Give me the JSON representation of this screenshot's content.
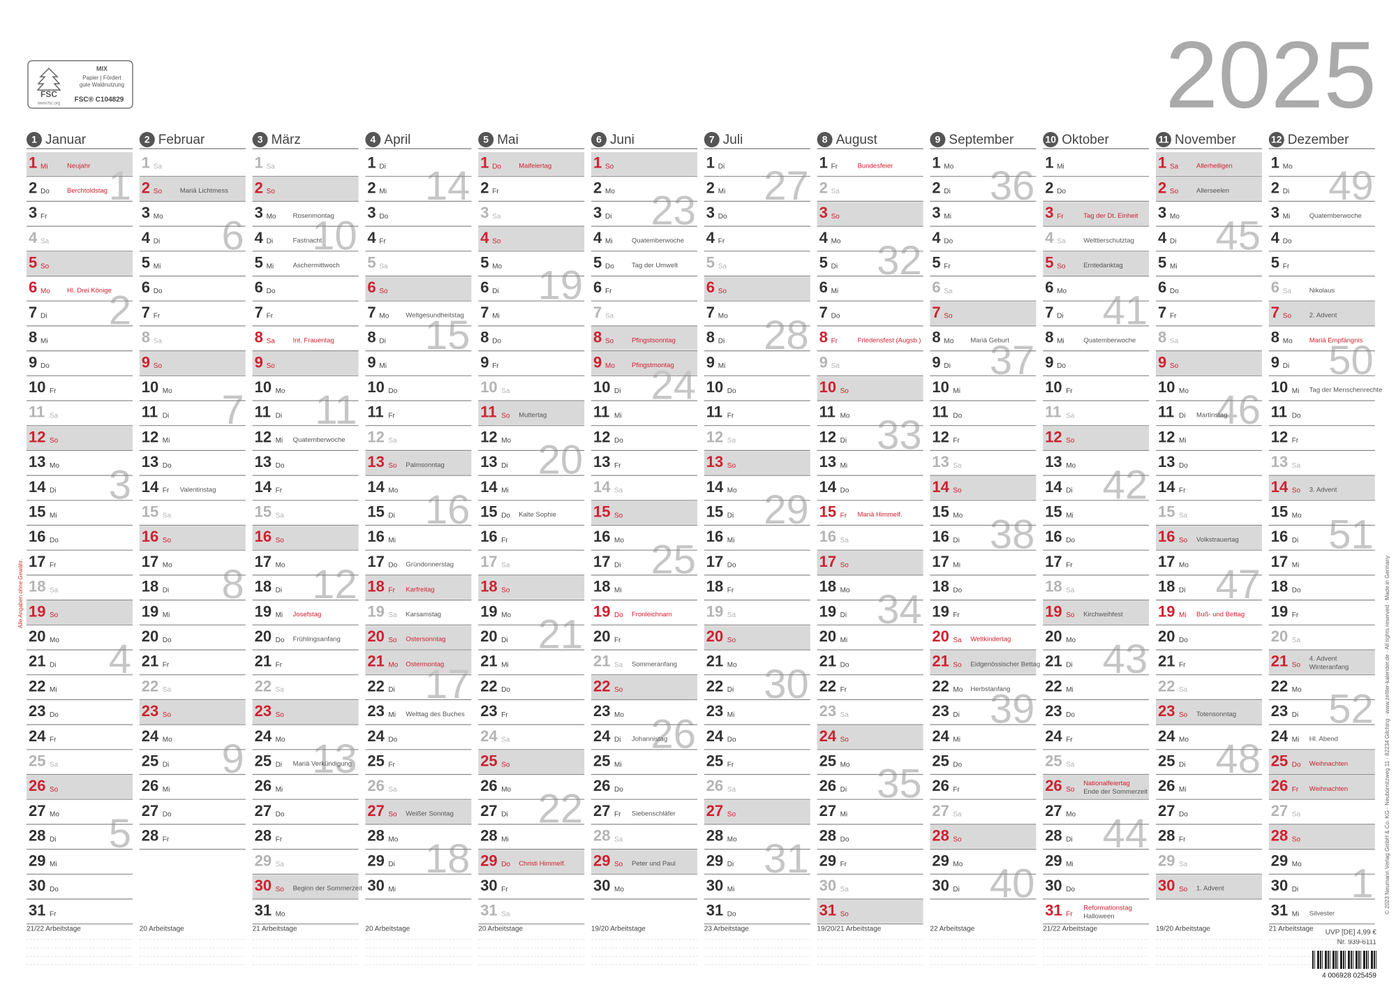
{
  "year": 2025,
  "weekdays": [
    "So",
    "Mo",
    "Di",
    "Mi",
    "Do",
    "Fr",
    "Sa"
  ],
  "fsc": {
    "mix": "MIX",
    "line1": "Papier | Fördert",
    "line2": "gute Waldnutzung",
    "code": "FSC® C104829",
    "logo": "FSC",
    "url": "www.fsc.org"
  },
  "months": [
    {
      "number": 1,
      "name": "Januar",
      "days": [
        1,
        2,
        3,
        4,
        5,
        6,
        7,
        8,
        9,
        10,
        11,
        12,
        13,
        14,
        15,
        16,
        17,
        18,
        19,
        20,
        21,
        22,
        23,
        24,
        25,
        26,
        27,
        28,
        29,
        30,
        31
      ],
      "weeks": [
        1,
        2,
        3,
        4,
        5
      ],
      "notes": [
        {
          "day": 1,
          "text": "Neujahr",
          "style": 3
        },
        {
          "day": 2,
          "text": "Berchtoldstag",
          "style": 1
        },
        {
          "day": 6,
          "text": "Hl. Drei Könige",
          "style": 2
        }
      ],
      "workdays": "21/22 Arbeitstage"
    },
    {
      "number": 2,
      "name": "Februar",
      "days": [
        1,
        2,
        3,
        4,
        5,
        6,
        7,
        8,
        9,
        10,
        11,
        12,
        13,
        14,
        15,
        16,
        17,
        18,
        19,
        20,
        21,
        22,
        23,
        24,
        25,
        26,
        27,
        28
      ],
      "weeks": [
        6,
        7,
        8,
        9
      ],
      "notes": [
        {
          "day": 2,
          "text": "Mariä Lichtmess",
          "style": 0
        },
        {
          "day": 14,
          "text": "Valentinstag",
          "style": 0
        }
      ],
      "workdays": "20 Arbeitstage"
    },
    {
      "number": 3,
      "name": "März",
      "days": [
        1,
        2,
        3,
        4,
        5,
        6,
        7,
        8,
        9,
        10,
        11,
        12,
        13,
        14,
        15,
        16,
        17,
        18,
        19,
        20,
        21,
        22,
        23,
        24,
        25,
        26,
        27,
        28,
        29,
        30,
        31
      ],
      "weeks": [
        10,
        11,
        12,
        13
      ],
      "notes": [
        {
          "day": 3,
          "text": "Rosenmontag",
          "style": 0
        },
        {
          "day": 4,
          "text": "Fastnacht",
          "style": 0
        },
        {
          "day": 5,
          "text": "Aschermittwoch",
          "style": 0
        },
        {
          "day": 8,
          "text": "Int. Frauentag",
          "style": 2
        },
        {
          "day": 12,
          "text": "Quatemberwoche",
          "style": 0
        },
        {
          "day": 19,
          "text": "Josefstag",
          "style": 1
        },
        {
          "day": 20,
          "text": "Frühlingsanfang",
          "style": 0
        },
        {
          "day": 25,
          "text": "Mariä Verkündigung",
          "style": 0
        },
        {
          "day": 30,
          "text": "Beginn der Sommerzeit",
          "style": 0
        }
      ],
      "workdays": "21 Arbeitstage"
    },
    {
      "number": 4,
      "name": "April",
      "days": [
        1,
        2,
        3,
        4,
        5,
        6,
        7,
        8,
        9,
        10,
        11,
        12,
        13,
        14,
        15,
        16,
        17,
        18,
        19,
        20,
        21,
        22,
        23,
        24,
        25,
        26,
        27,
        28,
        29,
        30
      ],
      "weeks": [
        14,
        15,
        16,
        17,
        18
      ],
      "notes": [
        {
          "day": 7,
          "text": "Weltgesundheitstag",
          "style": 0
        },
        {
          "day": 13,
          "text": "Palmsonntag",
          "style": 0
        },
        {
          "day": 17,
          "text": "Gründonnerstag",
          "style": 0
        },
        {
          "day": 18,
          "text": "Karfreitag",
          "style": 3
        },
        {
          "day": 19,
          "text": "Karsamstag",
          "style": 0
        },
        {
          "day": 20,
          "text": "Ostersonntag",
          "style": 3
        },
        {
          "day": 21,
          "text": "Ostermontag",
          "style": 3
        },
        {
          "day": 23,
          "text": "Welttag des Buches",
          "style": 0
        },
        {
          "day": 27,
          "text": "Weißer Sonntag",
          "style": 0
        }
      ],
      "workdays": "20 Arbeitstage"
    },
    {
      "number": 5,
      "name": "Mai",
      "days": [
        1,
        2,
        3,
        4,
        5,
        6,
        7,
        8,
        9,
        10,
        11,
        12,
        13,
        14,
        15,
        16,
        17,
        18,
        19,
        20,
        21,
        22,
        23,
        24,
        25,
        26,
        27,
        28,
        29,
        30,
        31
      ],
      "weeks": [
        19,
        20,
        21,
        22
      ],
      "notes": [
        {
          "day": 1,
          "text": "Maifeiertag",
          "style": 3
        },
        {
          "day": 11,
          "text": "Muttertag",
          "style": 0
        },
        {
          "day": 15,
          "text": "Kalte Sophie",
          "style": 0
        },
        {
          "day": 29,
          "text": "Christi Himmelf.",
          "style": 3
        }
      ],
      "workdays": "20 Arbeitstage"
    },
    {
      "number": 6,
      "name": "Juni",
      "days": [
        1,
        2,
        3,
        4,
        5,
        6,
        7,
        8,
        9,
        10,
        11,
        12,
        13,
        14,
        15,
        16,
        17,
        18,
        19,
        20,
        21,
        22,
        23,
        24,
        25,
        26,
        27,
        28,
        29,
        30
      ],
      "weeks": [
        23,
        24,
        25,
        26
      ],
      "notes": [
        {
          "day": 4,
          "text": "Quatemberwoche",
          "style": 0
        },
        {
          "day": 5,
          "text": "Tag der Umwelt",
          "style": 0
        },
        {
          "day": 8,
          "text": "Pfingstsonntag",
          "style": 3
        },
        {
          "day": 9,
          "text": "Pfingstmontag",
          "style": 3
        },
        {
          "day": 19,
          "text": "Fronleichnam",
          "style": 2
        },
        {
          "day": 21,
          "text": "Sommeranfang",
          "style": 0
        },
        {
          "day": 24,
          "text": "Johannistag",
          "style": 0
        },
        {
          "day": 27,
          "text": "Siebenschläfer",
          "style": 0
        },
        {
          "day": 29,
          "text": "Peter und Paul",
          "style": 0
        }
      ],
      "workdays": "19/20 Arbeitstage"
    },
    {
      "number": 7,
      "name": "Juli",
      "days": [
        1,
        2,
        3,
        4,
        5,
        6,
        7,
        8,
        9,
        10,
        11,
        12,
        13,
        14,
        15,
        16,
        17,
        18,
        19,
        20,
        21,
        22,
        23,
        24,
        25,
        26,
        27,
        28,
        29,
        30,
        31
      ],
      "weeks": [
        27,
        28,
        29,
        30,
        31
      ],
      "notes": [],
      "workdays": "23 Arbeitstage"
    },
    {
      "number": 8,
      "name": "August",
      "days": [
        1,
        2,
        3,
        4,
        5,
        6,
        7,
        8,
        9,
        10,
        11,
        12,
        13,
        14,
        15,
        16,
        17,
        18,
        19,
        20,
        21,
        22,
        23,
        24,
        25,
        26,
        27,
        28,
        29,
        30,
        31
      ],
      "weeks": [
        32,
        33,
        34,
        35
      ],
      "notes": [
        {
          "day": 1,
          "text": "Bundesfeier",
          "style": 1
        },
        {
          "day": 8,
          "text": "Friedensfest (Augsb.)",
          "style": 2
        },
        {
          "day": 15,
          "text": "Mariä Himmelf.",
          "style": 2
        }
      ],
      "workdays": "19/20/21 Arbeitstage"
    },
    {
      "number": 9,
      "name": "September",
      "days": [
        1,
        2,
        3,
        4,
        5,
        6,
        7,
        8,
        9,
        10,
        11,
        12,
        13,
        14,
        15,
        16,
        17,
        18,
        19,
        20,
        21,
        22,
        23,
        24,
        25,
        26,
        27,
        28,
        29,
        30
      ],
      "weeks": [
        36,
        37,
        38,
        39,
        40
      ],
      "notes": [
        {
          "day": 8,
          "text": "Mariä Geburt",
          "style": 0
        },
        {
          "day": 20,
          "text": "Weltkindertag",
          "style": 2
        },
        {
          "day": 21,
          "text": "Eidgenössischer Bettag",
          "style": 0
        },
        {
          "day": 22,
          "text": "Herbstanfang",
          "style": 0
        }
      ],
      "workdays": "22 Arbeitstage"
    },
    {
      "number": 10,
      "name": "Oktober",
      "days": [
        1,
        2,
        3,
        4,
        5,
        6,
        7,
        8,
        9,
        10,
        11,
        12,
        13,
        14,
        15,
        16,
        17,
        18,
        19,
        20,
        21,
        22,
        23,
        24,
        25,
        26,
        27,
        28,
        29,
        30,
        31
      ],
      "weeks": [
        41,
        42,
        43,
        44
      ],
      "notes": [
        {
          "day": 3,
          "text": "Tag der Dt. Einheit",
          "style": 3
        },
        {
          "day": 4,
          "text": "Welttierschutztag",
          "style": 0
        },
        {
          "day": 5,
          "text": "Erntedanktag",
          "style": 0
        },
        {
          "day": 8,
          "text": "Quatemberwoche",
          "style": 0
        },
        {
          "day": 19,
          "text": "Kirchweihfest",
          "style": 0
        },
        {
          "day": 26,
          "text": "Nationalfeiertag",
          "style": 1
        },
        {
          "day": 26,
          "text": "Ende der Sommerzeit",
          "style": 0
        },
        {
          "day": 31,
          "text": "Reformationstag",
          "style": 2
        },
        {
          "day": 31,
          "text": "Halloween",
          "style": 0
        }
      ],
      "workdays": "21/22 Arbeitstage"
    },
    {
      "number": 11,
      "name": "November",
      "days": [
        1,
        2,
        3,
        4,
        5,
        6,
        7,
        8,
        9,
        10,
        11,
        12,
        13,
        14,
        15,
        16,
        17,
        18,
        19,
        20,
        21,
        22,
        23,
        24,
        25,
        26,
        27,
        28,
        29,
        30
      ],
      "weeks": [
        45,
        46,
        47,
        48
      ],
      "notes": [
        {
          "day": 1,
          "text": "Allerheiligen",
          "style": 3
        },
        {
          "day": 2,
          "text": "Allerseelen",
          "style": 0
        },
        {
          "day": 11,
          "text": "Martinstag",
          "style": 0
        },
        {
          "day": 16,
          "text": "Volkstrauertag",
          "style": 0
        },
        {
          "day": 19,
          "text": "Buß- und Bettag",
          "style": 2
        },
        {
          "day": 23,
          "text": "Totensonntag",
          "style": 0
        },
        {
          "day": 30,
          "text": "1. Advent",
          "style": 0
        }
      ],
      "workdays": "19/20 Arbeitstage"
    },
    {
      "number": 12,
      "name": "Dezember",
      "days": [
        1,
        2,
        3,
        4,
        5,
        6,
        7,
        8,
        9,
        10,
        11,
        12,
        13,
        14,
        15,
        16,
        17,
        18,
        19,
        20,
        21,
        22,
        23,
        24,
        25,
        26,
        27,
        28,
        29,
        30,
        31
      ],
      "weeks": [
        49,
        50,
        51,
        52,
        1
      ],
      "notes": [
        {
          "day": 3,
          "text": "Quatemberwoche",
          "style": 0
        },
        {
          "day": 6,
          "text": "Nikolaus",
          "style": 0
        },
        {
          "day": 7,
          "text": "2. Advent",
          "style": 0
        },
        {
          "day": 8,
          "text": "Mariä Empfängnis",
          "style": 1
        },
        {
          "day": 10,
          "text": "Tag der Menschenrechte",
          "style": 0
        },
        {
          "day": 14,
          "text": "3. Advent",
          "style": 0
        },
        {
          "day": 21,
          "text": "4. Advent",
          "style": 0
        },
        {
          "day": 21,
          "text": "Winteranfang",
          "style": 0
        },
        {
          "day": 24,
          "text": "Hl. Abend",
          "style": 0
        },
        {
          "day": 25,
          "text": "Weihnachten",
          "style": 3
        },
        {
          "day": 26,
          "text": "Weihnachten",
          "style": 3
        },
        {
          "day": 31,
          "text": "Silvester",
          "style": 0
        }
      ],
      "workdays": "21 Arbeitstage"
    }
  ],
  "price": "UVP [DE] 4,99 €",
  "article": "Nr. 939-6111",
  "barcode": "4 006928 025459",
  "imprint": "© 2023 Neumann Verlag GmbH & Co. KG · Neubörnitzweg 11 · 82234 Gilching · www.zettler-kalender.de · All rights reserved · Made in Germany",
  "disclaimer": "Alle Angaben ohne Gewähr."
}
